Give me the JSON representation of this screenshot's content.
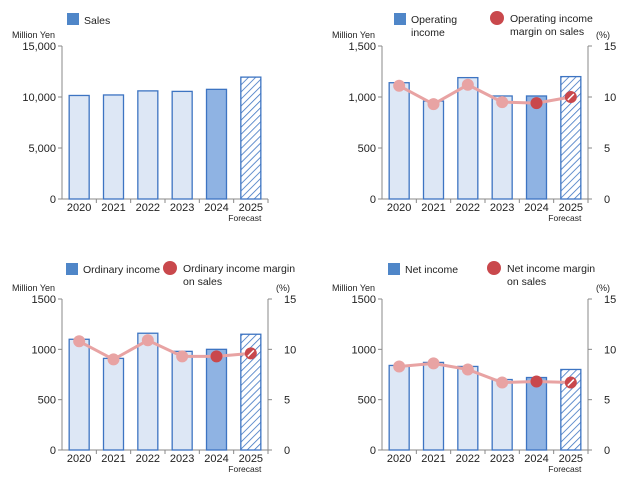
{
  "chart_data": [
    {
      "type": "bar",
      "title": "Sales",
      "unit_left": "Million Yen",
      "categories": [
        "2020",
        "2021",
        "2022",
        "2023",
        "2024",
        "2025"
      ],
      "forecast_label": "Forecast",
      "ylim": [
        0,
        15000
      ],
      "yticks": [
        "0",
        "5,000",
        "10,000",
        "15,000"
      ],
      "ytick_values": [
        0,
        5000,
        10000,
        15000
      ],
      "series": [
        {
          "name": "Sales",
          "values": [
            10150,
            10200,
            10600,
            10550,
            10750,
            11950
          ]
        }
      ],
      "highlight_index": 4,
      "forecast_index": 5
    },
    {
      "type": "bar+line",
      "unit_left": "Million Yen",
      "unit_right": "(%)",
      "categories": [
        "2020",
        "2021",
        "2022",
        "2023",
        "2024",
        "2025"
      ],
      "forecast_label": "Forecast",
      "ylim": [
        0,
        1500
      ],
      "yticks": [
        "0",
        "500",
        "1,000",
        "1,500"
      ],
      "ytick_values": [
        0,
        500,
        1000,
        1500
      ],
      "y2lim": [
        0,
        15
      ],
      "y2ticks": [
        "0",
        "5",
        "10",
        "15"
      ],
      "y2tick_values": [
        0,
        5,
        10,
        15
      ],
      "legend_bar": [
        "Operating",
        "income"
      ],
      "legend_line": [
        "Operating income",
        "margin on sales"
      ],
      "series": [
        {
          "name": "Operating income",
          "values": [
            1140,
            960,
            1190,
            1010,
            1010,
            1200
          ]
        },
        {
          "name": "Operating income margin on sales",
          "values": [
            11.1,
            9.3,
            11.2,
            9.5,
            9.4,
            10.0
          ],
          "axis": "right"
        }
      ],
      "highlight_index": 4,
      "forecast_index": 5
    },
    {
      "type": "bar+line",
      "unit_left": "Million Yen",
      "unit_right": "(%)",
      "categories": [
        "2020",
        "2021",
        "2022",
        "2023",
        "2024",
        "2025"
      ],
      "forecast_label": "Forecast",
      "ylim": [
        0,
        1500
      ],
      "yticks": [
        "0",
        "500",
        "1000",
        "1500"
      ],
      "ytick_values": [
        0,
        500,
        1000,
        1500
      ],
      "y2lim": [
        0,
        15
      ],
      "y2ticks": [
        "0",
        "5",
        "10",
        "15"
      ],
      "y2tick_values": [
        0,
        5,
        10,
        15
      ],
      "legend_bar": [
        "Ordinary income"
      ],
      "legend_line": [
        "Ordinary income margin",
        "on sales"
      ],
      "series": [
        {
          "name": "Ordinary income",
          "values": [
            1100,
            910,
            1160,
            980,
            1000,
            1150
          ]
        },
        {
          "name": "Ordinary income margin on sales",
          "values": [
            10.8,
            9.0,
            10.9,
            9.3,
            9.3,
            9.6
          ],
          "axis": "right"
        }
      ],
      "highlight_index": 4,
      "forecast_index": 5
    },
    {
      "type": "bar+line",
      "unit_left": "Million Yen",
      "unit_right": "(%)",
      "categories": [
        "2020",
        "2021",
        "2022",
        "2023",
        "2024",
        "2025"
      ],
      "forecast_label": "Forecast",
      "ylim": [
        0,
        1500
      ],
      "yticks": [
        "0",
        "500",
        "1000",
        "1500"
      ],
      "ytick_values": [
        0,
        500,
        1000,
        1500
      ],
      "y2lim": [
        0,
        15
      ],
      "y2ticks": [
        "0",
        "5",
        "10",
        "15"
      ],
      "y2tick_values": [
        0,
        5,
        10,
        15
      ],
      "legend_bar": [
        "Net income"
      ],
      "legend_line": [
        "Net income margin",
        "on sales"
      ],
      "series": [
        {
          "name": "Net income",
          "values": [
            840,
            870,
            830,
            700,
            720,
            800
          ]
        },
        {
          "name": "Net income margin on sales",
          "values": [
            8.3,
            8.6,
            8.0,
            6.7,
            6.8,
            6.7
          ],
          "axis": "right"
        }
      ],
      "highlight_index": 4,
      "forecast_index": 5
    }
  ],
  "colors": {
    "bar_fill": "#dde7f5",
    "bar_highlight": "#8fb3e3",
    "bar_stroke": "#3d74c2",
    "hatch": "#3d74c2",
    "line": "#e8a3a3",
    "marker": "#c9484c",
    "axis": "#888888",
    "legend_bar": "#4f86c8"
  }
}
